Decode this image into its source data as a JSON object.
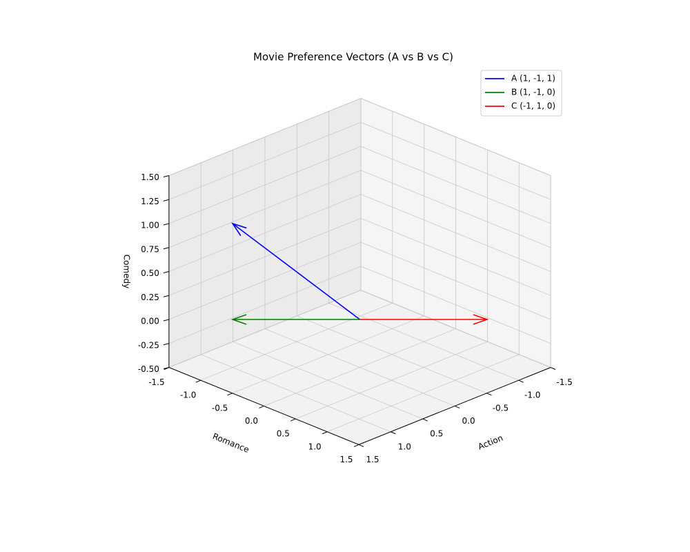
{
  "chart_data": {
    "type": "quiver3d",
    "title": "Movie Preference Vectors (A vs B vs C)",
    "xlabel": "Action",
    "ylabel": "Romance",
    "zlabel": "Comedy",
    "xlim": [
      -1.5,
      1.5
    ],
    "ylim": [
      -1.5,
      1.5
    ],
    "zlim": [
      -0.5,
      1.5
    ],
    "xticks": [
      {
        "value": -1.5,
        "label": "-1.5"
      },
      {
        "value": -1,
        "label": "-1.0"
      },
      {
        "value": -0.5,
        "label": "-0.5"
      },
      {
        "value": 0,
        "label": "0.0"
      },
      {
        "value": 0.5,
        "label": "0.5"
      },
      {
        "value": 1,
        "label": "1.0"
      },
      {
        "value": 1.5,
        "label": "1.5"
      }
    ],
    "yticks": [
      {
        "value": -1.5,
        "label": "-1.5"
      },
      {
        "value": -1,
        "label": "-1.0"
      },
      {
        "value": -0.5,
        "label": "-0.5"
      },
      {
        "value": 0,
        "label": "0.0"
      },
      {
        "value": 0.5,
        "label": "0.5"
      },
      {
        "value": 1,
        "label": "1.0"
      },
      {
        "value": 1.5,
        "label": "1.5"
      }
    ],
    "zticks": [
      {
        "value": -0.5,
        "label": "-0.50"
      },
      {
        "value": -0.25,
        "label": "-0.25"
      },
      {
        "value": 0,
        "label": "0.00"
      },
      {
        "value": 0.25,
        "label": "0.25"
      },
      {
        "value": 0.5,
        "label": "0.50"
      },
      {
        "value": 0.75,
        "label": "0.75"
      },
      {
        "value": 1,
        "label": "1.00"
      },
      {
        "value": 1.25,
        "label": "1.25"
      },
      {
        "value": 1.5,
        "label": "1.50"
      }
    ],
    "grid": true,
    "legend": "upper right",
    "series": [
      {
        "name": "A (1, -1, 1)",
        "color": "#0000ff",
        "values": [
          1,
          -1,
          1
        ]
      },
      {
        "name": "B (1, -1, 0)",
        "color": "#008000",
        "values": [
          1,
          -1,
          0
        ]
      },
      {
        "name": "C (-1, 1, 0)",
        "color": "#ff0000",
        "values": [
          -1,
          1,
          0
        ]
      }
    ]
  }
}
